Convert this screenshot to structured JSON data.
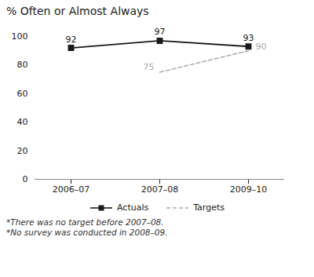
{
  "chart_data": {
    "type": "line",
    "title": "% Often or Almost Always",
    "categories": [
      "2006–07",
      "2007–08",
      "2009–10"
    ],
    "series": [
      {
        "name": "Actuals",
        "color": "#1a1a1a",
        "values": [
          92,
          97,
          93
        ],
        "marker": "square",
        "line_style": "solid"
      },
      {
        "name": "Targets",
        "color": "#aaaaaa",
        "values": [
          null,
          75,
          90
        ],
        "line_style": "dashed"
      }
    ],
    "ylim": [
      0,
      100
    ],
    "yticks": [
      0,
      20,
      40,
      60,
      80,
      100
    ],
    "grid": false,
    "legend": "bottom",
    "data_labels": true,
    "annotations": [
      "*There was no target before 2007–08.",
      "*No survey was conducted in 2008–09."
    ]
  }
}
